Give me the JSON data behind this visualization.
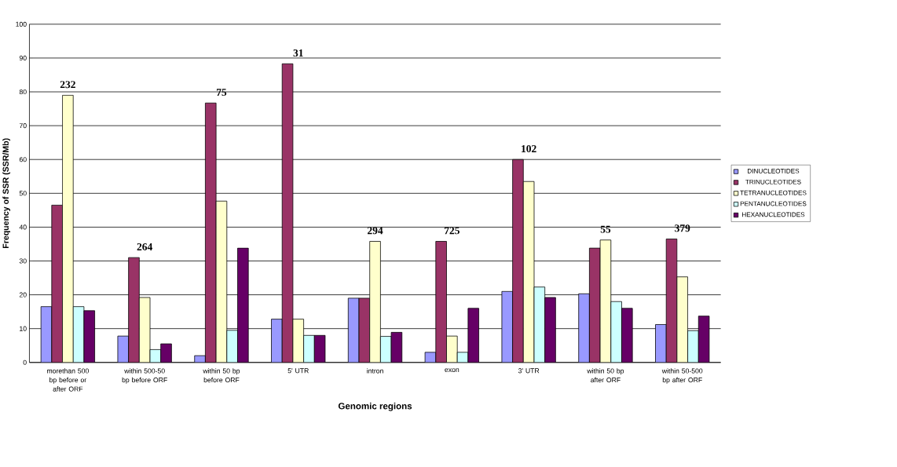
{
  "chart_data": {
    "type": "bar",
    "xlabel": "Genomic regions",
    "ylabel": "Frequency of SSR (SSR/Mb)",
    "categories": [
      "morethan 500 bp before or after ORF",
      "within 500-50 bp before ORF",
      "within 50 bp before ORF",
      "5' UTR",
      "intron",
      "exon",
      "3' UTR",
      "within 50 bp after ORF",
      "within 50-500 bp after ORF"
    ],
    "series": [
      {
        "name": "DINUCLEOTIDES",
        "color": "#9999ff",
        "values": [
          16.5,
          7.8,
          2,
          12.8,
          19,
          3,
          21,
          20.3,
          11.2
        ]
      },
      {
        "name": "TRINUCLEOTIDES",
        "color": "#993366",
        "values": [
          46.5,
          31,
          76.7,
          88.3,
          19,
          35.8,
          60,
          33.8,
          36.5
        ]
      },
      {
        "name": "TETRANUCLEOTIDES",
        "color": "#ffffcc",
        "values": [
          79,
          19.2,
          47.7,
          12.8,
          35.8,
          7.8,
          53.5,
          36.2,
          25.3
        ]
      },
      {
        "name": "PENTANUCLEOTIDES",
        "color": "#ccffff",
        "values": [
          16.5,
          3.8,
          9.5,
          8,
          7.7,
          3,
          22.3,
          18,
          9.4
        ]
      },
      {
        "name": "HEXANUCLEOTIDES",
        "color": "#660066",
        "values": [
          15.3,
          5.5,
          33.8,
          8,
          8.9,
          16,
          19.2,
          16,
          13.7
        ]
      }
    ],
    "ylim": [
      0,
      100
    ],
    "yticks": [
      0,
      10,
      20,
      30,
      40,
      50,
      60,
      70,
      80,
      90,
      100
    ],
    "grid": "y",
    "legend": "right",
    "annotations": [
      "232",
      "264",
      "75",
      "31",
      "294",
      "725",
      "102",
      "55",
      "379"
    ]
  }
}
